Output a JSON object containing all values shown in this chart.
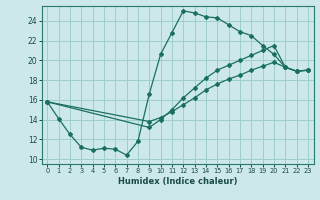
{
  "xlabel": "Humidex (Indice chaleur)",
  "xlim": [
    -0.5,
    23.5
  ],
  "ylim": [
    9.5,
    25.5
  ],
  "xticks": [
    0,
    1,
    2,
    3,
    4,
    5,
    6,
    7,
    8,
    9,
    10,
    11,
    12,
    13,
    14,
    15,
    16,
    17,
    18,
    19,
    20,
    21,
    22,
    23
  ],
  "yticks": [
    10,
    12,
    14,
    16,
    18,
    20,
    22,
    24
  ],
  "background_color": "#cde8e8",
  "line_color": "#1a7060",
  "grid_color": "#9ecece",
  "line1_x": [
    0,
    1,
    2,
    3,
    4,
    5,
    6,
    7,
    8,
    9,
    10,
    11,
    12,
    13,
    14,
    15,
    16,
    17,
    18,
    19,
    20,
    21,
    22,
    23
  ],
  "line1_y": [
    15.8,
    14.1,
    12.5,
    11.2,
    10.9,
    11.1,
    11.0,
    10.4,
    11.8,
    16.6,
    20.6,
    22.8,
    25.0,
    24.8,
    24.4,
    24.3,
    23.6,
    22.9,
    22.5,
    21.5,
    20.6,
    19.3,
    18.9,
    19.0
  ],
  "line2_x": [
    0,
    9,
    10,
    11,
    12,
    13,
    14,
    15,
    16,
    17,
    18,
    19,
    20,
    21,
    22,
    23
  ],
  "line2_y": [
    15.8,
    13.8,
    14.2,
    14.8,
    15.5,
    16.2,
    17.0,
    17.6,
    18.1,
    18.5,
    19.0,
    19.4,
    19.8,
    19.3,
    18.9,
    19.0
  ],
  "line3_x": [
    0,
    9,
    10,
    11,
    12,
    13,
    14,
    15,
    16,
    17,
    18,
    19,
    20,
    21,
    22,
    23
  ],
  "line3_y": [
    15.8,
    13.2,
    14.0,
    15.0,
    16.2,
    17.2,
    18.2,
    19.0,
    19.5,
    20.0,
    20.5,
    21.0,
    21.5,
    19.3,
    18.9,
    19.0
  ]
}
